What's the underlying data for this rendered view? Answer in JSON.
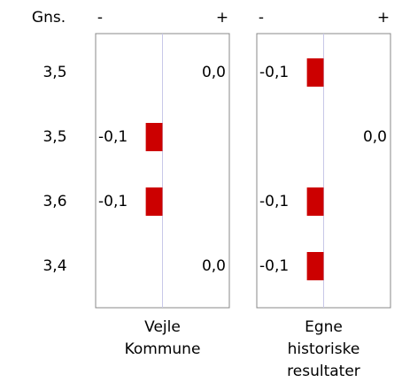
{
  "chart_data": {
    "type": "bar",
    "row_header": "Gns.",
    "categories": [
      "3,5",
      "3,5",
      "3,6",
      "3,4"
    ],
    "minus_label": "-",
    "plus_label": "+",
    "xlim": [
      -0.4,
      0.4
    ],
    "color": "#cc0000",
    "panels": [
      {
        "title": [
          "Vejle",
          "Kommune"
        ],
        "values": [
          0.0,
          -0.1,
          -0.1,
          0.0
        ],
        "value_labels": [
          "0,0",
          "-0,1",
          "-0,1",
          "0,0"
        ]
      },
      {
        "title": [
          "Egne",
          "historiske",
          "resultater"
        ],
        "values": [
          -0.1,
          0.0,
          -0.1,
          -0.1
        ],
        "value_labels": [
          "-0,1",
          "0,0",
          "-0,1",
          "-0,1"
        ]
      }
    ]
  }
}
